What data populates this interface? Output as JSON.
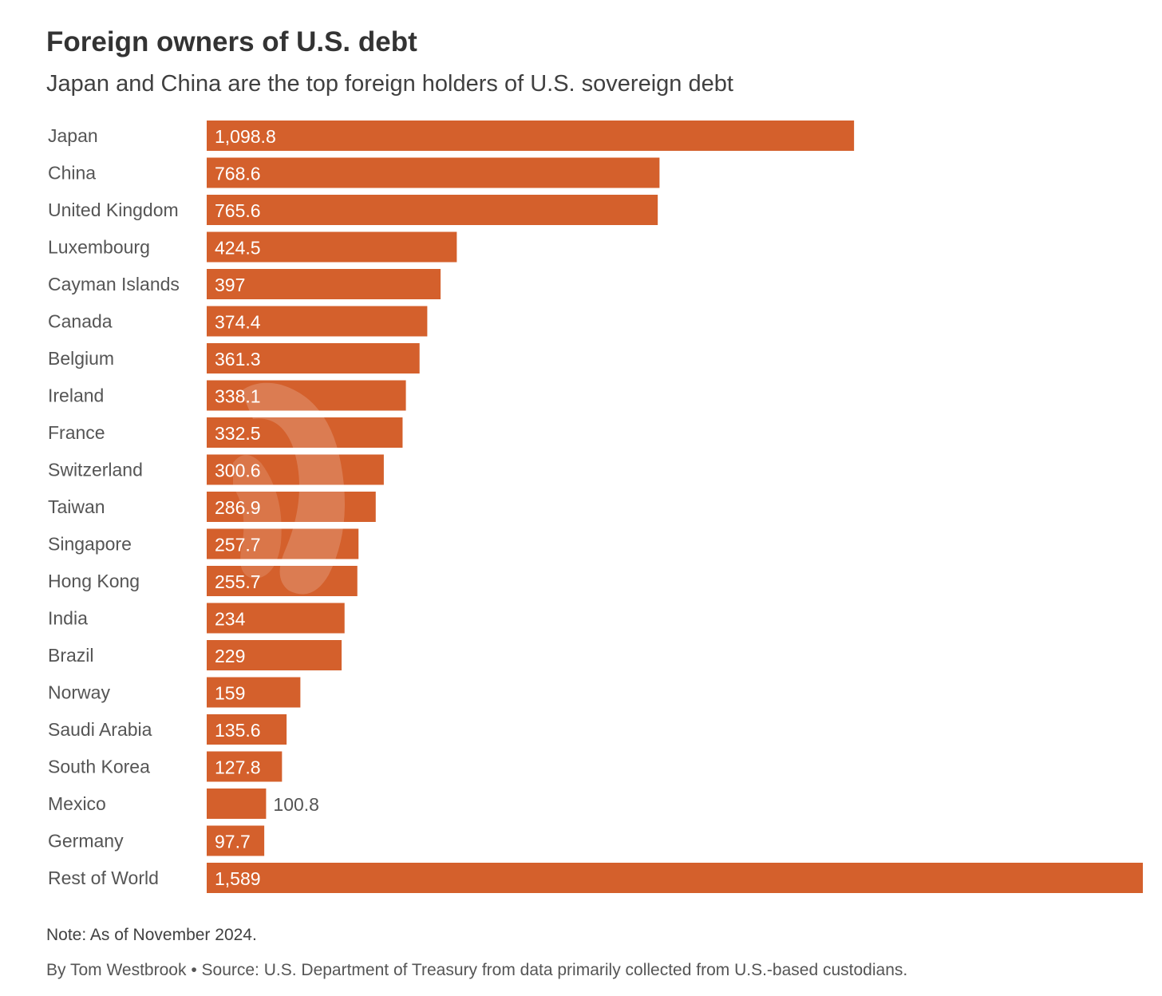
{
  "title": "Foreign owners of U.S. debt",
  "subtitle": "Japan and China are the top foreign holders of U.S. sovereign debt",
  "note": "Note: As of November 2024.",
  "credit": {
    "byline": "By Tom Westbrook",
    "separator": "•",
    "source": "Source: U.S. Department of Treasury from data primarily collected from U.S.-based custodians."
  },
  "colors": {
    "bar": "#d4602c",
    "inside_label": "#ffffff",
    "outside_label": "#555555"
  },
  "chart_data": {
    "type": "bar",
    "orientation": "horizontal",
    "categories": [
      "Japan",
      "China",
      "United Kingdom",
      "Luxembourg",
      "Cayman Islands",
      "Canada",
      "Belgium",
      "Ireland",
      "France",
      "Switzerland",
      "Taiwan",
      "Singapore",
      "Hong Kong",
      "India",
      "Brazil",
      "Norway",
      "Saudi Arabia",
      "South Korea",
      "Mexico",
      "Germany",
      "Rest of World"
    ],
    "values": [
      1098.8,
      768.6,
      765.6,
      424.5,
      397,
      374.4,
      361.3,
      338.1,
      332.5,
      300.6,
      286.9,
      257.7,
      255.7,
      234,
      229,
      159,
      135.6,
      127.8,
      100.8,
      97.7,
      1589
    ],
    "value_labels": [
      "1,098.8",
      "768.6",
      "765.6",
      "424.5",
      "397",
      "374.4",
      "361.3",
      "338.1",
      "332.5",
      "300.6",
      "286.9",
      "257.7",
      "255.7",
      "234",
      "229",
      "159",
      "135.6",
      "127.8",
      "100.8",
      "97.7",
      "1,589"
    ],
    "xlim": [
      0,
      1589
    ],
    "grid": false,
    "legend": "none"
  }
}
